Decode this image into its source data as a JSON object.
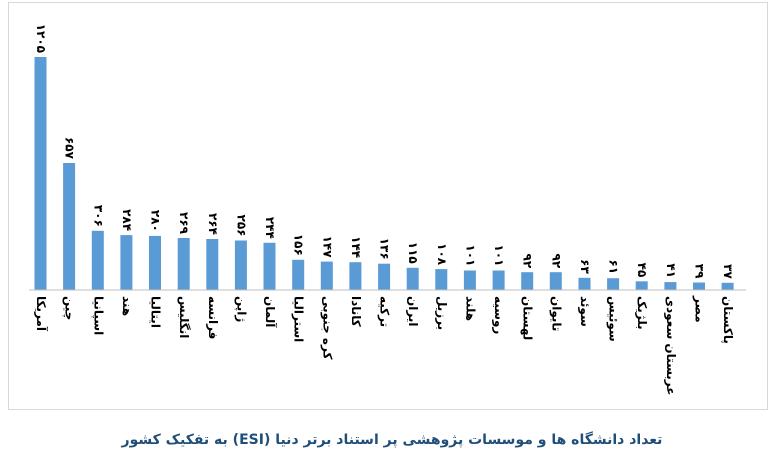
{
  "caption": "تعداد دانشگاه ها و موسسات پژوهشی پر استناد برتر دنیا (ESI) به تفکیک کشور",
  "colors": {
    "bar": "#5b9bd5",
    "axis": "#bfbfbf",
    "caption": "#1f4e79"
  },
  "chart_data": {
    "type": "bar",
    "title": "",
    "xlabel": "",
    "ylabel": "",
    "ylim": [
      0,
      1205
    ],
    "categories": [
      "آمریکا",
      "چین",
      "اسپانیا",
      "هند",
      "ایتالیا",
      "انگلیس",
      "فرانسه",
      "ژاپن",
      "آلمان",
      "استرالیا",
      "کره جنوبی",
      "کانادا",
      "ترکیه",
      "ایران",
      "برزیل",
      "هلند",
      "روسیه",
      "لهستان",
      "تایوان",
      "سوئد",
      "سوئیس",
      "بلژیک",
      "عربستان سعودی",
      "مصر",
      "پاکستان"
    ],
    "values": [
      1205,
      657,
      306,
      284,
      280,
      269,
      264,
      256,
      244,
      156,
      147,
      144,
      136,
      115,
      108,
      101,
      101,
      92,
      92,
      63,
      61,
      45,
      41,
      39,
      37
    ],
    "value_labels": [
      "۱۲۰۵",
      "۶۵۷",
      "۳۰۶",
      "۲۸۴",
      "۲۸۰",
      "۲۶۹",
      "۲۶۴",
      "۲۵۶",
      "۲۴۴",
      "۱۵۶",
      "۱۴۷",
      "۱۴۴",
      "۱۳۶",
      "۱۱۵",
      "۱۰۸",
      "۱۰۱",
      "۱۰۱",
      "۹۲",
      "۹۲",
      "۶۳",
      "۶۱",
      "۴۵",
      "۴۱",
      "۳۹",
      "۳۷"
    ]
  }
}
